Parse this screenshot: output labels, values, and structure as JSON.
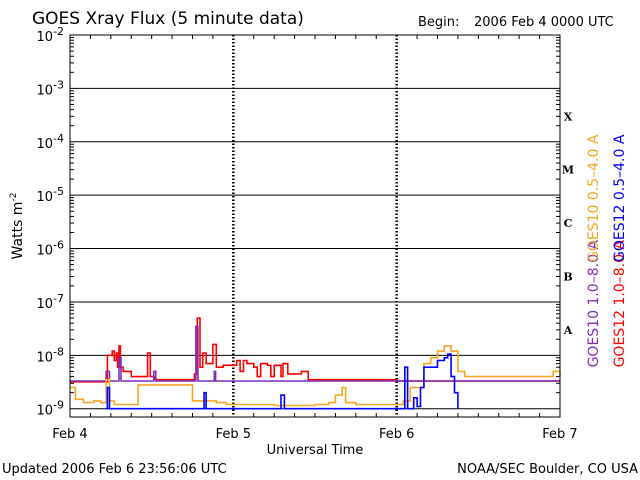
{
  "header": {
    "title": "GOES Xray Flux (5 minute data)",
    "begin_label": "Begin:",
    "begin_value": "2006 Feb 4 0000 UTC"
  },
  "footer": {
    "updated": "Updated 2006 Feb  6 23:56:06 UTC",
    "credit": "NOAA/SEC Boulder, CO USA"
  },
  "chart_data": {
    "type": "line",
    "title": "GOES Xray Flux (5 minute data)",
    "xlabel": "Universal Time",
    "ylabel": "Watts m",
    "ylabel_sup": "-2",
    "yscale": "log",
    "ylim": [
      7e-10,
      0.01
    ],
    "xlim": [
      0,
      72
    ],
    "grid": true,
    "x_ticks": [
      {
        "label": "Feb 4",
        "hours": 0
      },
      {
        "label": "Feb 5",
        "hours": 24
      },
      {
        "label": "Feb 6",
        "hours": 48
      },
      {
        "label": "Feb 7",
        "hours": 72
      }
    ],
    "y_ticks": [
      {
        "base": "10",
        "exp": "-2",
        "value": 0.01
      },
      {
        "base": "10",
        "exp": "-3",
        "value": 0.001
      },
      {
        "base": "10",
        "exp": "-4",
        "value": 0.0001
      },
      {
        "base": "10",
        "exp": "-5",
        "value": 1e-05
      },
      {
        "base": "10",
        "exp": "-6",
        "value": 1e-06
      },
      {
        "base": "10",
        "exp": "-7",
        "value": 1e-07
      },
      {
        "base": "10",
        "exp": "-8",
        "value": 1e-08
      },
      {
        "base": "10",
        "exp": "-9",
        "value": 1e-09
      }
    ],
    "flare_classes": [
      {
        "label": "X",
        "value": 0.0003
      },
      {
        "label": "M",
        "value": 3e-05
      },
      {
        "label": "C",
        "value": 3e-06
      },
      {
        "label": "B",
        "value": 3e-07
      },
      {
        "label": "A",
        "value": 3e-08
      }
    ],
    "legend": [
      {
        "name": "GOES10 1.0–8.0 A",
        "color": "#7f2fbf"
      },
      {
        "name": "GOES12 1.0–8.0 A",
        "color": "#ff0000"
      },
      {
        "name": "GOES10 0.5–4.0 A",
        "color": "#f5a623"
      },
      {
        "name": "GOES12 0.5–4.0 A",
        "color": "#0000ff"
      }
    ],
    "series": [
      {
        "name": "GOES12 1.0–8.0 A",
        "color": "#ff0000",
        "points": [
          [
            0,
            3.2e-09
          ],
          [
            5.4,
            3.2e-09
          ],
          [
            5.5,
            1e-08
          ],
          [
            6.2,
            1.2e-08
          ],
          [
            6.5,
            8e-09
          ],
          [
            6.8,
            1.1e-08
          ],
          [
            7.0,
            6e-09
          ],
          [
            7.2,
            1.5e-08
          ],
          [
            7.4,
            6e-09
          ],
          [
            7.8,
            5e-09
          ],
          [
            8.5,
            5e-09
          ],
          [
            9.0,
            4e-09
          ],
          [
            10.0,
            4e-09
          ],
          [
            11.0,
            4e-09
          ],
          [
            11.4,
            1.1e-08
          ],
          [
            11.8,
            4e-09
          ],
          [
            12.5,
            3.5e-09
          ],
          [
            15.0,
            3.5e-09
          ],
          [
            17.5,
            3.5e-09
          ],
          [
            18.3,
            4.5e-09
          ],
          [
            18.7,
            5e-08
          ],
          [
            19.1,
            6e-09
          ],
          [
            19.5,
            1.1e-08
          ],
          [
            20.0,
            7e-09
          ],
          [
            21.0,
            1.6e-08
          ],
          [
            21.5,
            6e-09
          ],
          [
            22.5,
            6.5e-09
          ],
          [
            24.0,
            6.5e-09
          ],
          [
            24.5,
            8e-09
          ],
          [
            25.0,
            5e-09
          ],
          [
            25.5,
            8e-09
          ],
          [
            26.0,
            7e-09
          ],
          [
            27.0,
            6e-09
          ],
          [
            27.5,
            4e-09
          ],
          [
            28.0,
            7e-09
          ],
          [
            29.0,
            6.5e-09
          ],
          [
            29.5,
            4e-09
          ],
          [
            30.0,
            6.5e-09
          ],
          [
            31.0,
            4e-09
          ],
          [
            31.3,
            7e-09
          ],
          [
            32.0,
            4.5e-09
          ],
          [
            34.0,
            5e-09
          ],
          [
            35.0,
            3.5e-09
          ],
          [
            40.0,
            3.5e-09
          ],
          [
            48.0,
            3.3e-09
          ],
          [
            56.0,
            3.3e-09
          ],
          [
            64.0,
            3.3e-09
          ],
          [
            72.0,
            3.3e-09
          ]
        ]
      },
      {
        "name": "GOES10 1.0–8.0 A",
        "color": "#7f2fbf",
        "points": [
          [
            0,
            3.3e-09
          ],
          [
            5.0,
            3.3e-09
          ],
          [
            5.3,
            5e-09
          ],
          [
            5.8,
            3.3e-09
          ],
          [
            7.0,
            3.3e-09
          ],
          [
            7.2,
            9e-09
          ],
          [
            7.5,
            3.3e-09
          ],
          [
            12.0,
            3.3e-09
          ],
          [
            12.3,
            5e-09
          ],
          [
            12.6,
            3.3e-09
          ],
          [
            18.0,
            3.3e-09
          ],
          [
            18.5,
            3.5e-08
          ],
          [
            18.8,
            3.3e-09
          ],
          [
            21.0,
            3.3e-09
          ],
          [
            21.2,
            5e-09
          ],
          [
            21.4,
            3.3e-09
          ],
          [
            72.0,
            3.3e-09
          ]
        ]
      },
      {
        "name": "GOES10 0.5–4.0 A",
        "color": "#f5a623",
        "points": [
          [
            0,
            2.5e-09
          ],
          [
            0.8,
            1.5e-09
          ],
          [
            2.0,
            1.3e-09
          ],
          [
            3.5,
            1.4e-09
          ],
          [
            4.5,
            1.3e-09
          ],
          [
            5.3,
            3.5e-09
          ],
          [
            5.8,
            1.4e-09
          ],
          [
            6.5,
            1.2e-09
          ],
          [
            9.8,
            1.2e-09
          ],
          [
            10.0,
            2.8e-09
          ],
          [
            12.0,
            2.8e-09
          ],
          [
            17.8,
            2.8e-09
          ],
          [
            18.0,
            1.4e-09
          ],
          [
            21.5,
            1.3e-09
          ],
          [
            23.0,
            1.2e-09
          ],
          [
            30.0,
            1.15e-09
          ],
          [
            36.0,
            1.2e-09
          ],
          [
            38.0,
            1.3e-09
          ],
          [
            39.0,
            1.8e-09
          ],
          [
            40.0,
            2.5e-09
          ],
          [
            40.5,
            1.3e-09
          ],
          [
            42.0,
            1.2e-09
          ],
          [
            47.0,
            1.2e-09
          ],
          [
            48.5,
            1.2e-09
          ],
          [
            49.0,
            1.4e-09
          ],
          [
            50.0,
            2.5e-09
          ],
          [
            52.0,
            7e-09
          ],
          [
            53.0,
            9e-09
          ],
          [
            54.0,
            1.2e-08
          ],
          [
            55.0,
            1.5e-08
          ],
          [
            56.0,
            1.2e-08
          ],
          [
            57.0,
            5e-09
          ],
          [
            58.0,
            4e-09
          ],
          [
            60.0,
            4e-09
          ],
          [
            64.0,
            4e-09
          ],
          [
            70.5,
            4e-09
          ],
          [
            71.0,
            5e-09
          ],
          [
            72.0,
            4e-09
          ]
        ]
      },
      {
        "name": "GOES12 0.5–4.0 A",
        "color": "#0000ff",
        "points": [
          [
            5.2,
            1e-09
          ],
          [
            5.5,
            2.5e-09
          ],
          [
            5.8,
            1e-09
          ],
          [
            19.5,
            1e-09
          ],
          [
            19.7,
            2e-09
          ],
          [
            20.0,
            1e-09
          ],
          [
            30.5,
            1e-09
          ],
          [
            31.0,
            1.8e-09
          ],
          [
            31.5,
            1e-09
          ],
          [
            48.8,
            1e-09
          ],
          [
            49.2,
            6e-09
          ],
          [
            49.6,
            1e-09
          ],
          [
            50.2,
            1e-09
          ],
          [
            50.5,
            1.6e-09
          ],
          [
            51.0,
            1.1e-09
          ],
          [
            51.5,
            2.5e-09
          ],
          [
            52.0,
            6e-09
          ],
          [
            53.0,
            6e-09
          ],
          [
            54.0,
            8e-09
          ],
          [
            55.0,
            9e-09
          ],
          [
            55.5,
            1.05e-08
          ],
          [
            56.0,
            4e-09
          ],
          [
            56.5,
            2e-09
          ],
          [
            57.0,
            1e-09
          ]
        ]
      }
    ]
  }
}
